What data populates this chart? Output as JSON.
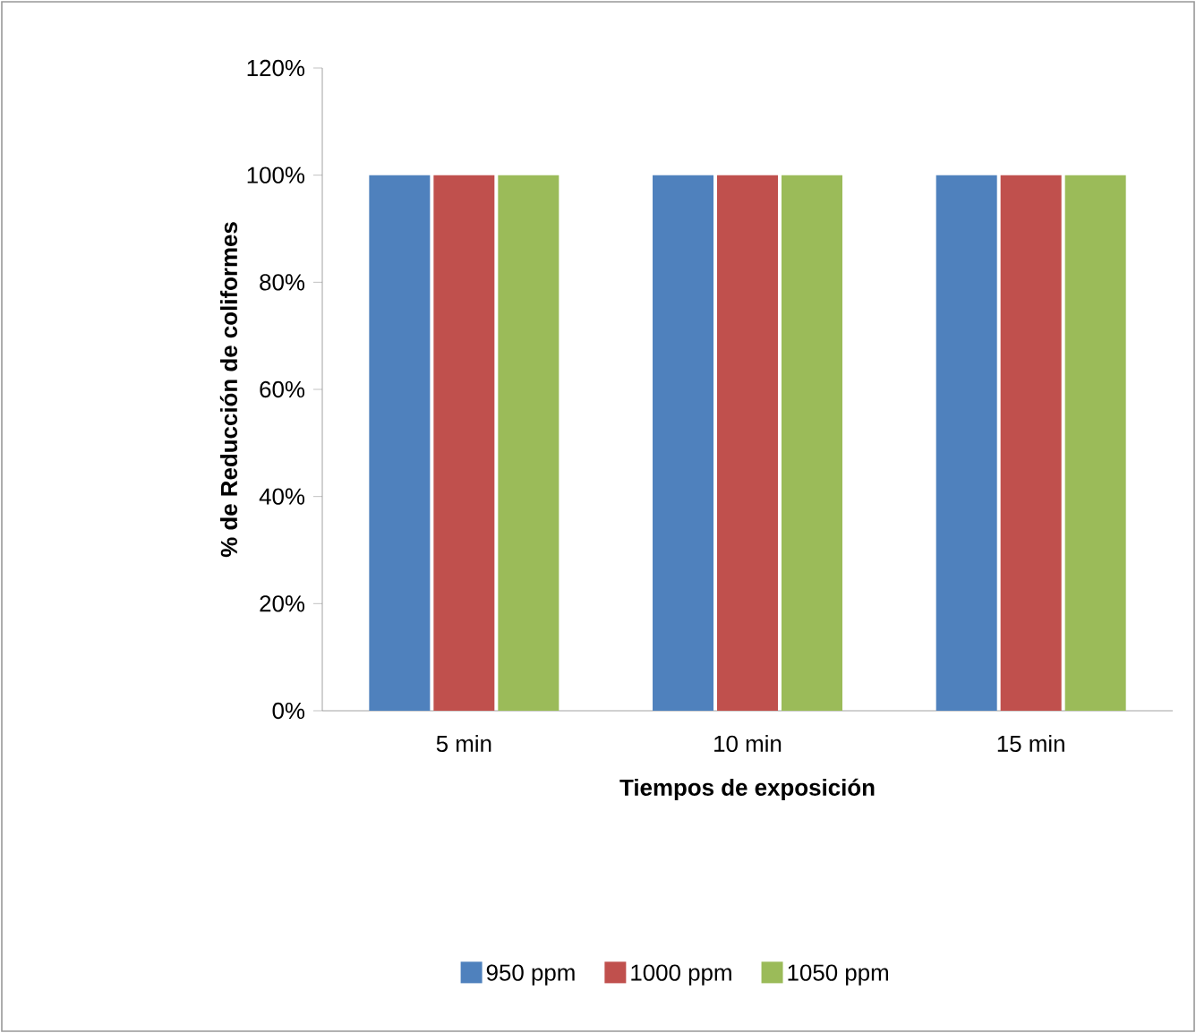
{
  "chart_data": {
    "type": "bar",
    "xlabel": "Tiempos de exposición",
    "ylabel": "% de Reducción de coliformes",
    "categories": [
      "5 min",
      "10 min",
      "15 min"
    ],
    "series": [
      {
        "name": "950 ppm",
        "color": "#4f81bd",
        "values": [
          100,
          100,
          100
        ]
      },
      {
        "name": "1000 ppm",
        "color": "#c0504d",
        "values": [
          100,
          100,
          100
        ]
      },
      {
        "name": "1050 ppm",
        "color": "#9bbb59",
        "values": [
          100,
          100,
          100
        ]
      }
    ],
    "ylim": [
      0,
      120
    ],
    "yticks": [
      {
        "value": 0,
        "label": "0%"
      },
      {
        "value": 20,
        "label": "20%"
      },
      {
        "value": 40,
        "label": "40%"
      },
      {
        "value": 60,
        "label": "60%"
      },
      {
        "value": 80,
        "label": "80%"
      },
      {
        "value": 100,
        "label": "100%"
      },
      {
        "value": 120,
        "label": "120%"
      }
    ],
    "grid": false,
    "legend": "bottom"
  }
}
